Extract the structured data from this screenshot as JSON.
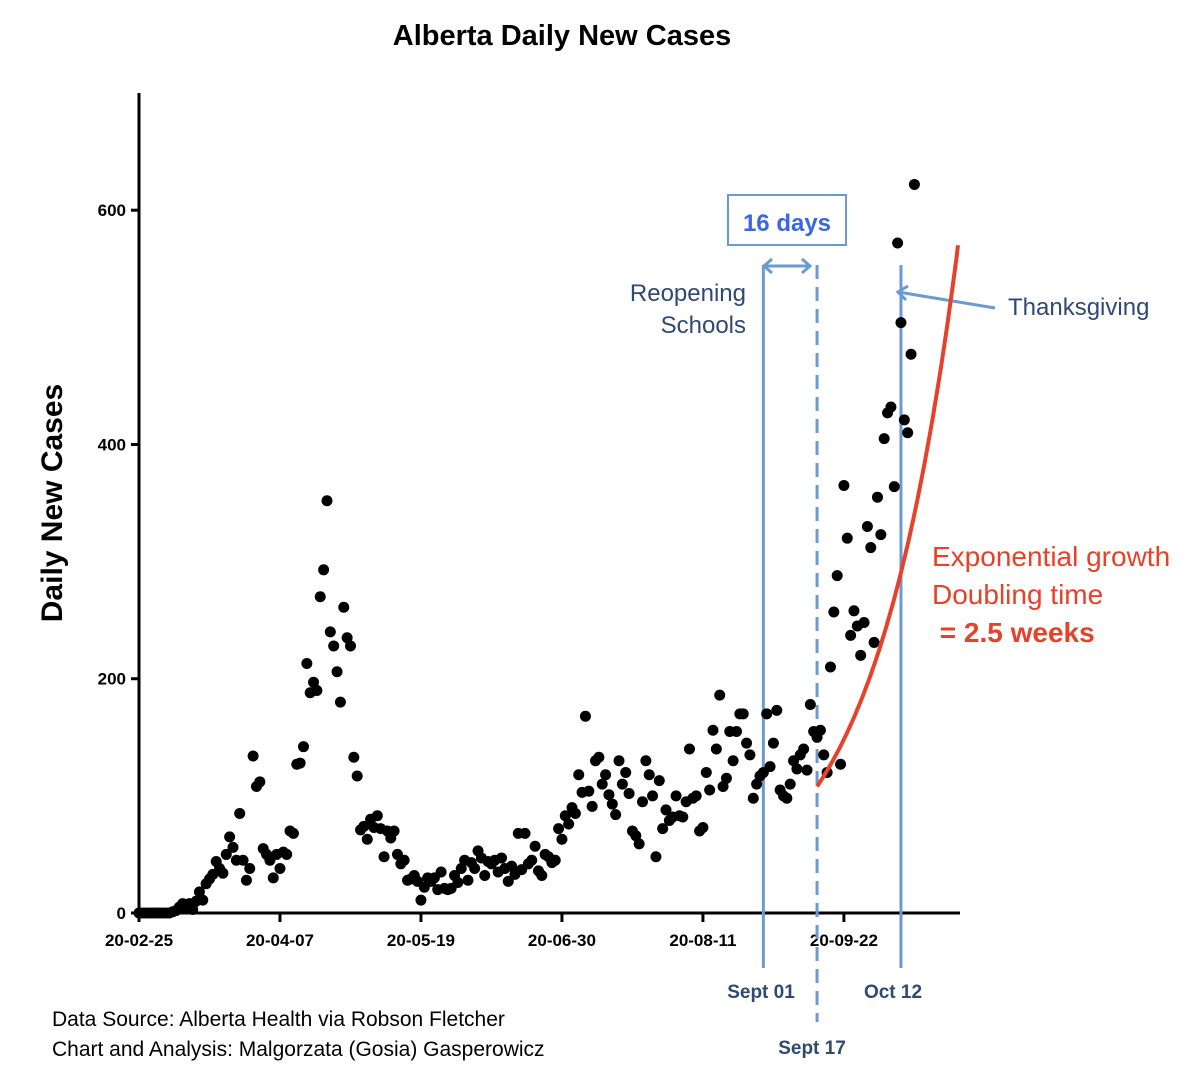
{
  "colors": {
    "points": "#000000",
    "fit": "#e8412a",
    "marker": "#6b9ad0",
    "annotation": "#2e4a72",
    "days": "#3a66e0"
  },
  "notes": {
    "source": "Data Source: Alberta Health via Robson Fletcher",
    "analysis": "Chart and Analysis: Malgorzata (Gosia) Gasperowicz"
  },
  "annotations": {
    "days_box": "16 days",
    "reopening_line1": "Reopening",
    "reopening_line2": "Schools",
    "thanksgiving": "Thanksgiving",
    "sept01": "Sept 01",
    "sept17": "Sept 17",
    "oct12": "Oct 12",
    "growth_line1": "Exponential growth",
    "growth_line2": "Doubling time",
    "growth_line3": " = 2.5 weeks"
  },
  "chart_data": {
    "type": "scatter",
    "title": "Alberta Daily New Cases",
    "xlabel": "",
    "ylabel": "Daily New Cases",
    "x_tick_labels": [
      "20-02-25",
      "20-04-07",
      "20-05-19",
      "20-06-30",
      "20-08-11",
      "20-09-22"
    ],
    "y_ticks": [
      0,
      200,
      400,
      600
    ],
    "xlim": [
      0,
      247
    ],
    "ylim": [
      0,
      700
    ],
    "grid": false,
    "vertical_markers": [
      {
        "x": 186,
        "label": "Sept 01",
        "style": "solid"
      },
      {
        "x": 202,
        "label": "Sept 17",
        "style": "dashed"
      },
      {
        "x": 227,
        "label": "Oct 12",
        "style": "solid"
      }
    ],
    "fit": {
      "name": "",
      "x_start": 202,
      "x_end": 244,
      "y_start": 108,
      "doubling_days": 17.5
    },
    "points": [
      [
        0,
        0
      ],
      [
        1,
        0
      ],
      [
        2,
        0
      ],
      [
        3,
        0
      ],
      [
        4,
        0
      ],
      [
        5,
        0
      ],
      [
        6,
        0
      ],
      [
        7,
        0
      ],
      [
        8,
        0
      ],
      [
        9,
        0
      ],
      [
        10,
        1
      ],
      [
        11,
        2
      ],
      [
        12,
        5
      ],
      [
        13,
        8
      ],
      [
        14,
        4
      ],
      [
        15,
        8
      ],
      [
        16,
        3
      ],
      [
        17,
        10
      ],
      [
        18,
        18
      ],
      [
        19,
        11
      ],
      [
        20,
        25
      ],
      [
        21,
        29
      ],
      [
        22,
        33
      ],
      [
        23,
        44
      ],
      [
        24,
        38
      ],
      [
        25,
        34
      ],
      [
        26,
        50
      ],
      [
        27,
        65
      ],
      [
        28,
        56
      ],
      [
        29,
        45
      ],
      [
        30,
        85
      ],
      [
        31,
        45
      ],
      [
        32,
        28
      ],
      [
        33,
        38
      ],
      [
        34,
        134
      ],
      [
        35,
        108
      ],
      [
        36,
        112
      ],
      [
        37,
        55
      ],
      [
        38,
        50
      ],
      [
        39,
        45
      ],
      [
        40,
        30
      ],
      [
        41,
        50
      ],
      [
        42,
        38
      ],
      [
        43,
        52
      ],
      [
        44,
        50
      ],
      [
        45,
        70
      ],
      [
        46,
        68
      ],
      [
        47,
        127
      ],
      [
        48,
        128
      ],
      [
        49,
        142
      ],
      [
        50,
        213
      ],
      [
        51,
        188
      ],
      [
        52,
        197
      ],
      [
        53,
        190
      ],
      [
        54,
        270
      ],
      [
        55,
        293
      ],
      [
        56,
        352
      ],
      [
        57,
        240
      ],
      [
        58,
        228
      ],
      [
        59,
        206
      ],
      [
        60,
        180
      ],
      [
        61,
        261
      ],
      [
        62,
        235
      ],
      [
        63,
        228
      ],
      [
        64,
        133
      ],
      [
        65,
        117
      ],
      [
        66,
        71
      ],
      [
        67,
        74
      ],
      [
        68,
        63
      ],
      [
        69,
        80
      ],
      [
        70,
        73
      ],
      [
        71,
        83
      ],
      [
        72,
        72
      ],
      [
        73,
        48
      ],
      [
        74,
        70
      ],
      [
        75,
        64
      ],
      [
        76,
        70
      ],
      [
        77,
        50
      ],
      [
        78,
        42
      ],
      [
        79,
        45
      ],
      [
        80,
        28
      ],
      [
        81,
        29
      ],
      [
        82,
        32
      ],
      [
        83,
        27
      ],
      [
        84,
        11
      ],
      [
        85,
        22
      ],
      [
        86,
        30
      ],
      [
        87,
        27
      ],
      [
        88,
        30
      ],
      [
        89,
        20
      ],
      [
        90,
        35
      ],
      [
        91,
        21
      ],
      [
        92,
        20
      ],
      [
        93,
        21
      ],
      [
        94,
        32
      ],
      [
        95,
        26
      ],
      [
        96,
        38
      ],
      [
        97,
        45
      ],
      [
        98,
        28
      ],
      [
        99,
        43
      ],
      [
        100,
        38
      ],
      [
        101,
        53
      ],
      [
        102,
        47
      ],
      [
        103,
        32
      ],
      [
        104,
        44
      ],
      [
        105,
        42
      ],
      [
        106,
        45
      ],
      [
        107,
        35
      ],
      [
        108,
        47
      ],
      [
        109,
        38
      ],
      [
        110,
        27
      ],
      [
        111,
        40
      ],
      [
        112,
        33
      ],
      [
        113,
        68
      ],
      [
        114,
        37
      ],
      [
        115,
        68
      ],
      [
        116,
        42
      ],
      [
        117,
        45
      ],
      [
        118,
        57
      ],
      [
        119,
        36
      ],
      [
        120,
        32
      ],
      [
        121,
        50
      ],
      [
        122,
        48
      ],
      [
        123,
        43
      ],
      [
        124,
        45
      ],
      [
        125,
        72
      ],
      [
        126,
        63
      ],
      [
        127,
        83
      ],
      [
        128,
        76
      ],
      [
        129,
        90
      ],
      [
        130,
        85
      ],
      [
        131,
        118
      ],
      [
        132,
        103
      ],
      [
        133,
        168
      ],
      [
        134,
        104
      ],
      [
        135,
        91
      ],
      [
        136,
        130
      ],
      [
        137,
        133
      ],
      [
        138,
        110
      ],
      [
        139,
        118
      ],
      [
        140,
        101
      ],
      [
        141,
        93
      ],
      [
        142,
        84
      ],
      [
        143,
        130
      ],
      [
        144,
        110
      ],
      [
        145,
        120
      ],
      [
        146,
        102
      ],
      [
        147,
        70
      ],
      [
        148,
        66
      ],
      [
        149,
        59
      ],
      [
        150,
        95
      ],
      [
        151,
        130
      ],
      [
        152,
        118
      ],
      [
        153,
        100
      ],
      [
        154,
        48
      ],
      [
        155,
        113
      ],
      [
        156,
        72
      ],
      [
        157,
        88
      ],
      [
        158,
        79
      ],
      [
        159,
        82
      ],
      [
        160,
        100
      ],
      [
        161,
        83
      ],
      [
        162,
        82
      ],
      [
        163,
        95
      ],
      [
        164,
        140
      ],
      [
        165,
        98
      ],
      [
        166,
        100
      ],
      [
        167,
        70
      ],
      [
        168,
        73
      ],
      [
        169,
        120
      ],
      [
        170,
        105
      ],
      [
        171,
        156
      ],
      [
        172,
        140
      ],
      [
        173,
        186
      ],
      [
        174,
        108
      ],
      [
        175,
        115
      ],
      [
        176,
        155
      ],
      [
        177,
        130
      ],
      [
        178,
        155
      ],
      [
        179,
        170
      ],
      [
        180,
        170
      ],
      [
        181,
        145
      ],
      [
        182,
        135
      ],
      [
        183,
        98
      ],
      [
        184,
        110
      ],
      [
        185,
        117
      ],
      [
        186,
        120
      ],
      [
        187,
        170
      ],
      [
        188,
        125
      ],
      [
        189,
        145
      ],
      [
        190,
        173
      ],
      [
        191,
        105
      ],
      [
        192,
        100
      ],
      [
        193,
        98
      ],
      [
        194,
        110
      ],
      [
        195,
        130
      ],
      [
        196,
        123
      ],
      [
        197,
        135
      ],
      [
        198,
        140
      ],
      [
        199,
        122
      ],
      [
        200,
        178
      ],
      [
        201,
        155
      ],
      [
        202,
        150
      ],
      [
        203,
        156
      ],
      [
        204,
        135
      ],
      [
        205,
        120
      ],
      [
        206,
        210
      ],
      [
        207,
        257
      ],
      [
        208,
        288
      ],
      [
        209,
        127
      ],
      [
        210,
        365
      ],
      [
        211,
        320
      ],
      [
        212,
        237
      ],
      [
        213,
        258
      ],
      [
        214,
        245
      ],
      [
        215,
        220
      ],
      [
        216,
        248
      ],
      [
        217,
        330
      ],
      [
        218,
        312
      ],
      [
        219,
        231
      ],
      [
        220,
        355
      ],
      [
        221,
        323
      ],
      [
        222,
        405
      ],
      [
        223,
        427
      ],
      [
        224,
        432
      ],
      [
        225,
        364
      ],
      [
        226,
        572
      ],
      [
        227,
        504
      ],
      [
        228,
        421
      ],
      [
        229,
        410
      ],
      [
        230,
        477
      ],
      [
        231,
        622
      ]
    ]
  }
}
